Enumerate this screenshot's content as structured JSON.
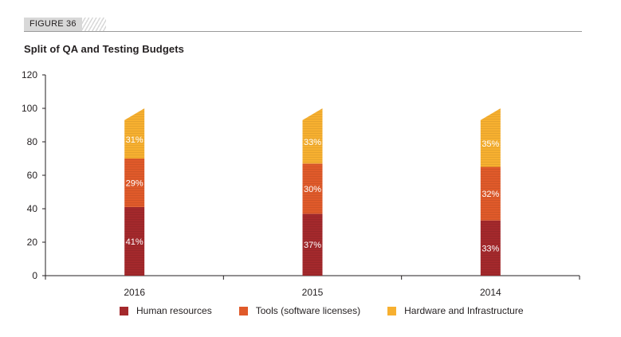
{
  "figure_label": "FIGURE 36",
  "chart_data": {
    "type": "bar",
    "stacked": true,
    "title": "Split of QA and Testing Budgets",
    "categories": [
      "2016",
      "2015",
      "2014"
    ],
    "series": [
      {
        "name": "Human resources",
        "values": [
          41,
          37,
          33
        ],
        "labels": [
          "41%",
          "37%",
          "33%"
        ],
        "color": "#a4292c"
      },
      {
        "name": "Tools (software licenses)",
        "values": [
          29,
          30,
          32
        ],
        "labels": [
          "29%",
          "30%",
          "32%"
        ],
        "color": "#e05a2a"
      },
      {
        "name": "Hardware and Infrastructure",
        "values": [
          31,
          33,
          35
        ],
        "labels": [
          "31%",
          "33%",
          "35%"
        ],
        "color": "#f7b030"
      }
    ],
    "ylim": [
      0,
      120
    ],
    "yticks": [
      0,
      20,
      40,
      60,
      80,
      100,
      120
    ],
    "ytick_labels": [
      "0",
      "20",
      "40",
      "60",
      "80",
      "100",
      "120"
    ],
    "xlabel": "",
    "ylabel": "",
    "grid": false,
    "legend_position": "bottom"
  }
}
